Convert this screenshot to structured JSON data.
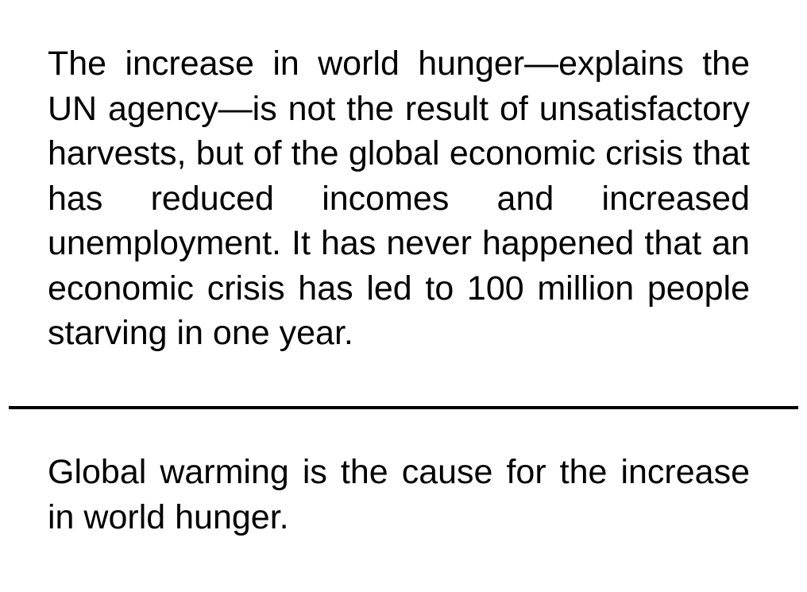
{
  "premise": {
    "text": "The increase in world hunger—explains the UN agency—is not the result of unsatisfactory harvests, but of the global economic crisis that has reduced incomes and increased unemployment. It has never happened that an economic crisis has led to 100 million people starving in one year."
  },
  "hypothesis": {
    "text": "Global warming is the cause for the increase in world hunger."
  }
}
